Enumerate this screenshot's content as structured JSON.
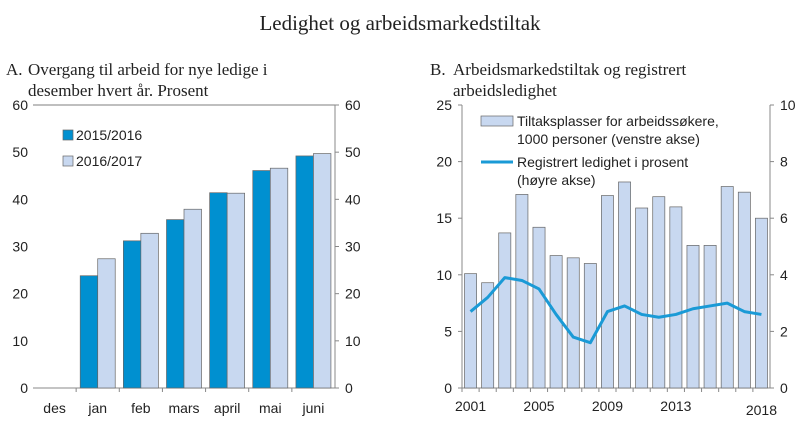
{
  "title": "Ledighet og arbeidsmarkedstiltak",
  "chart_data": [
    {
      "type": "bar",
      "panel_label": "A.",
      "title_lines": [
        "Overgang til arbeid for nye ledige i",
        "desember hvert år. Prosent"
      ],
      "categories": [
        "des",
        "jan",
        "feb",
        "mars",
        "april",
        "mai",
        "juni"
      ],
      "series": [
        {
          "name": "2015/2016",
          "color": "#0090d0",
          "values": [
            null,
            23.8,
            31.2,
            35.7,
            41.4,
            46.1,
            49.2
          ]
        },
        {
          "name": "2016/2017",
          "color": "#c8d8f0",
          "values": [
            null,
            27.4,
            32.8,
            37.9,
            41.3,
            46.6,
            49.7
          ]
        }
      ],
      "ylim": [
        0,
        60
      ],
      "yticks": [
        0,
        10,
        20,
        30,
        40,
        50,
        60
      ],
      "legend": "top-left"
    },
    {
      "type": "bar+line",
      "panel_label": "B.",
      "title_lines": [
        "Arbeidsmarkedstiltak og registrert",
        "arbeidsledighet"
      ],
      "x": [
        2001,
        2002,
        2003,
        2004,
        2005,
        2006,
        2007,
        2008,
        2009,
        2010,
        2011,
        2012,
        2013,
        2014,
        2015,
        2016,
        2017,
        2018
      ],
      "xtick_labels": [
        "2001",
        "2005",
        "2009",
        "2013",
        "2018"
      ],
      "bar_series": {
        "name_lines": [
          "Tiltaksplasser for arbeidssøkere,",
          "1000 personer (venstre akse)"
        ],
        "color": "#c8d8f0",
        "values": [
          10.1,
          9.3,
          13.7,
          17.1,
          14.2,
          11.7,
          11.5,
          11.0,
          17.0,
          18.2,
          15.9,
          16.9,
          16.0,
          12.6,
          12.6,
          17.8,
          17.3,
          15.0
        ]
      },
      "line_series": {
        "name_lines": [
          "Registrert ledighet i prosent",
          "(høyre akse)"
        ],
        "color": "#1a9ad6",
        "values": [
          2.7,
          3.2,
          3.9,
          3.8,
          3.5,
          2.6,
          1.8,
          1.6,
          2.7,
          2.9,
          2.6,
          2.5,
          2.6,
          2.8,
          2.9,
          3.0,
          2.7,
          2.6
        ]
      },
      "ylim_left": [
        0,
        25
      ],
      "yticks_left": [
        0,
        5,
        10,
        15,
        20,
        25
      ],
      "ylim_right": [
        0,
        10
      ],
      "yticks_right": [
        0,
        2,
        4,
        6,
        8,
        10
      ],
      "legend": "top"
    }
  ]
}
